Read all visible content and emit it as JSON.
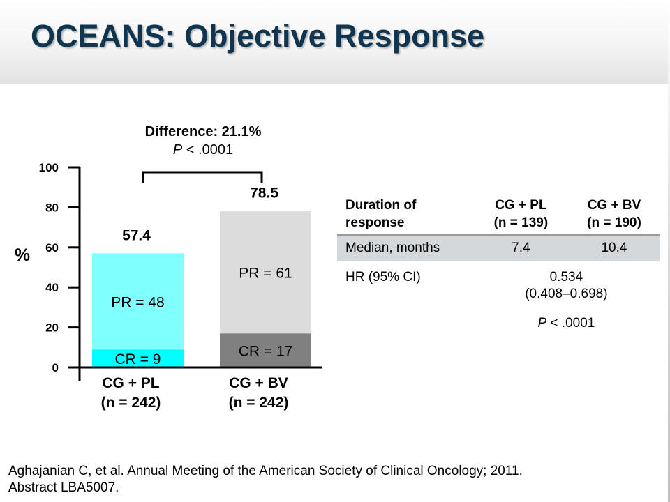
{
  "slide": {
    "title": "OCEANS: Objective Response",
    "citation_line1": "Aghajanian C, et al. Annual Meeting of the American Society of Clinical Oncology; 2011.",
    "citation_line2": "Abstract LBA5007."
  },
  "annotation": {
    "difference": "Difference: 21.1%",
    "p_symbol": "P",
    "p_value": " < .0001"
  },
  "chart_data": {
    "type": "bar",
    "stacked": true,
    "categories": [
      "CG + PL",
      "CG + BV"
    ],
    "category_sublabels": [
      "(n = 242)",
      "(n = 242)"
    ],
    "ylabel": "%",
    "ylim": [
      0,
      100
    ],
    "yticks": [
      0,
      20,
      40,
      60,
      80,
      100
    ],
    "totals": [
      57.4,
      78.5
    ],
    "total_labels": [
      "57.4",
      "78.5"
    ],
    "series": [
      {
        "key": "CR",
        "values": [
          9,
          17
        ],
        "labels": [
          "CR = 9",
          "CR = 17"
        ],
        "colors": [
          "#00ffff",
          "#808080"
        ]
      },
      {
        "key": "PR",
        "values": [
          48,
          61
        ],
        "labels": [
          "PR = 48",
          "PR = 61"
        ],
        "colors": [
          "#80ffff",
          "#dcdcdc"
        ]
      }
    ],
    "grid": false,
    "legend": "none"
  },
  "duration_table": {
    "header": {
      "label_line1": "Duration of",
      "label_line2": "response",
      "col1_line1": "CG + PL",
      "col1_line2": "(n = 139)",
      "col2_line1": "CG + BV",
      "col2_line2": "(n = 190)"
    },
    "median": {
      "label": "Median, months",
      "pl": "7.4",
      "bv": "10.4"
    },
    "hr": {
      "label": "HR (95% CI)",
      "value": "0.534",
      "ci": "(0.408–0.698)"
    },
    "p": {
      "symbol": "P",
      "value": " < .0001"
    }
  }
}
